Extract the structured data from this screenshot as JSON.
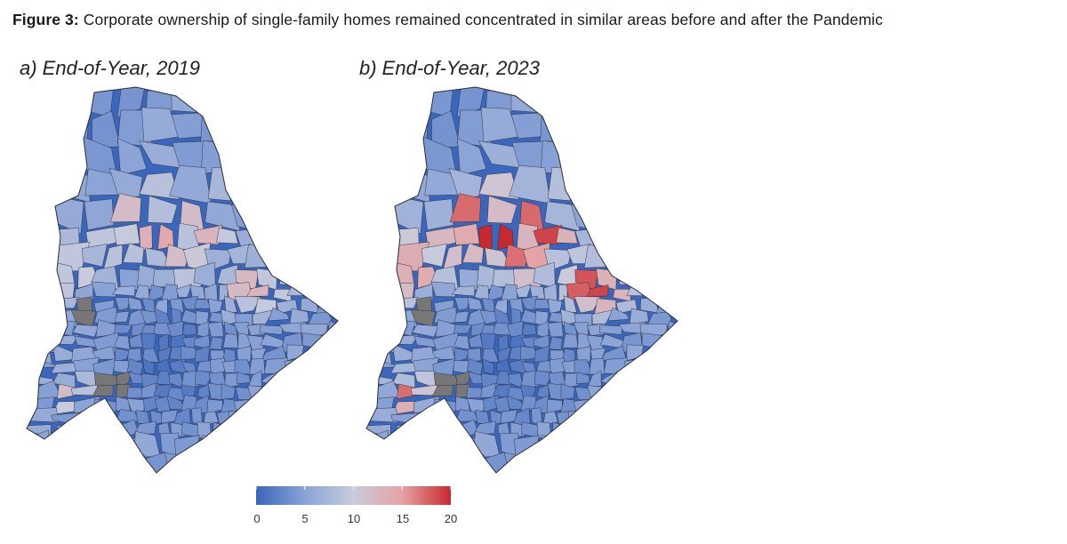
{
  "caption": {
    "label": "Figure 3:",
    "text": "Corporate ownership of single-family homes remained concentrated in similar areas before and after the Pandemic"
  },
  "panels": [
    {
      "id": "a",
      "title": "a) End-of-Year, 2019",
      "high_intensity": 0.55
    },
    {
      "id": "b",
      "title": "b) End-of-Year, 2023",
      "high_intensity": 1.0
    }
  ],
  "legend": {
    "min": 0,
    "max": 20,
    "ticks": [
      "0",
      "5",
      "10",
      "15",
      "20"
    ],
    "colors": [
      "#3a66bb",
      "#8aa3d6",
      "#c8ccdd",
      "#e6a2a3",
      "#c8282f"
    ],
    "missing_color": "#777777"
  }
}
